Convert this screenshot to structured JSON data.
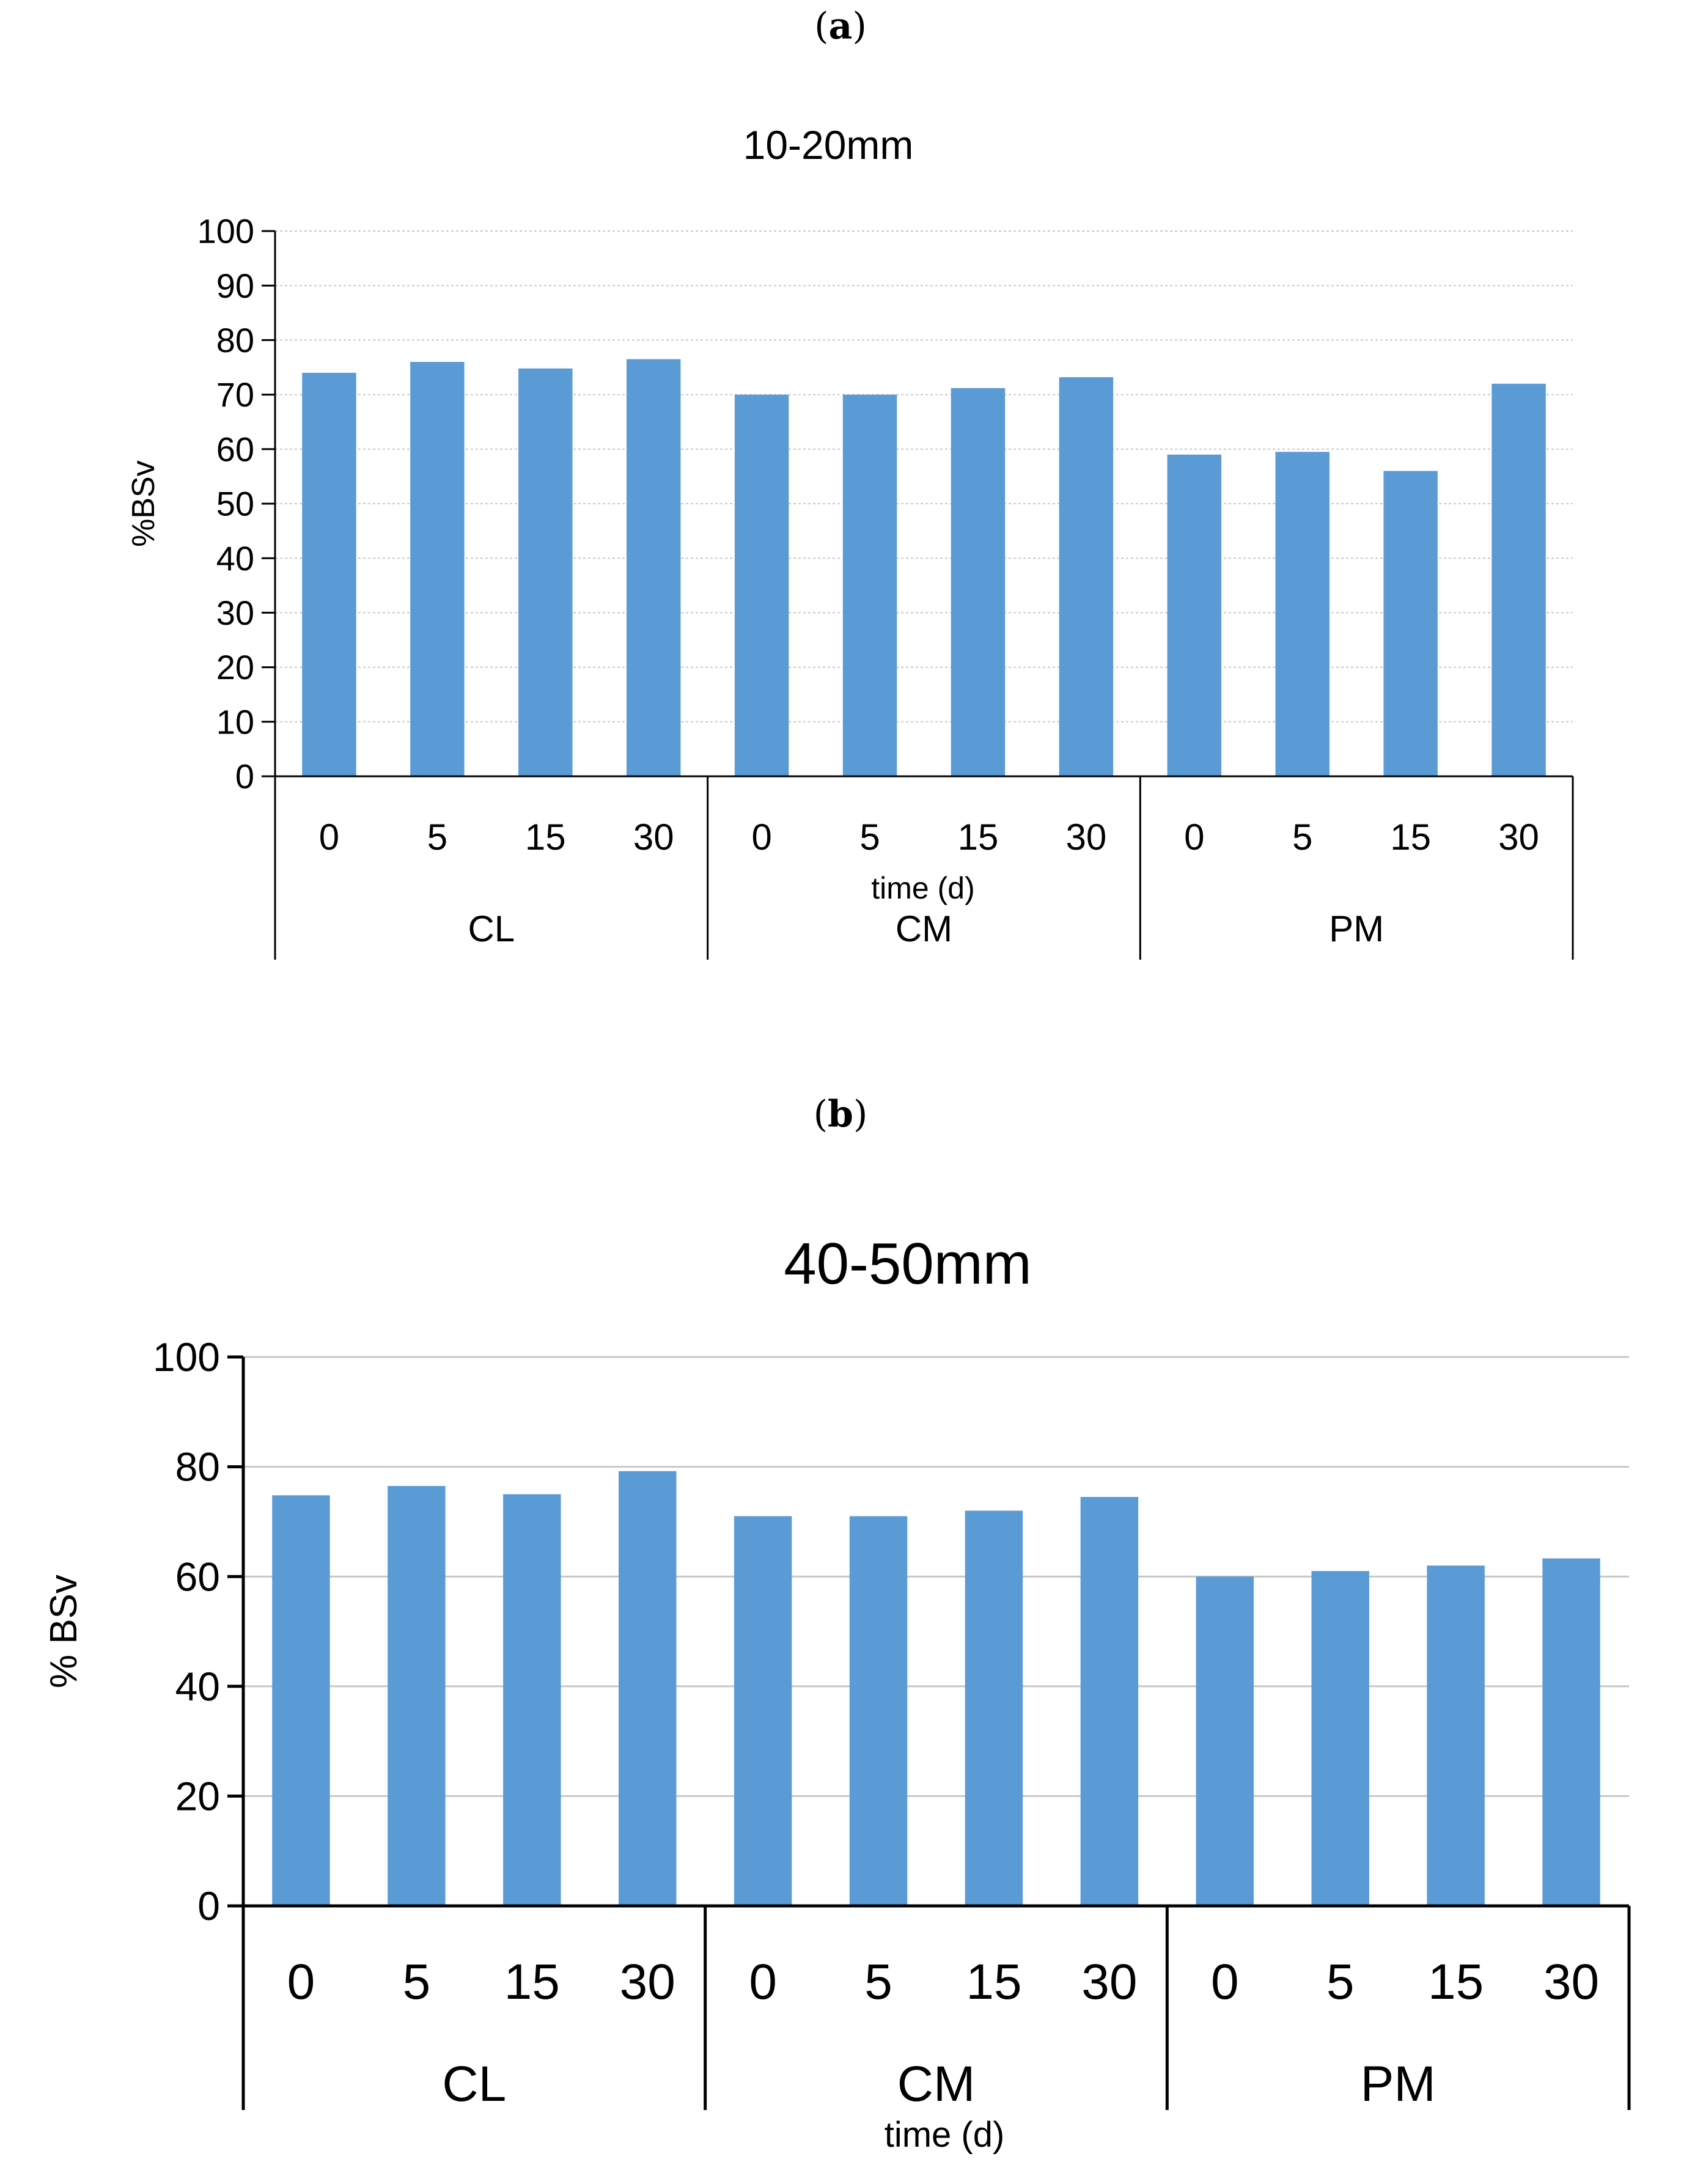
{
  "panels": [
    {
      "paren_open": "(",
      "letter": "a",
      "paren_close": ")"
    },
    {
      "paren_open": "(",
      "letter": "b",
      "paren_close": ")"
    }
  ],
  "chart_data": [
    {
      "type": "bar",
      "title": "10-20mm",
      "ylabel": "%BSv",
      "xlabel": "time (d)",
      "ylim": [
        0,
        100
      ],
      "yticks": [
        0,
        10,
        20,
        30,
        40,
        50,
        60,
        70,
        80,
        90,
        100
      ],
      "groups": [
        {
          "name": "CL",
          "categories": [
            "0",
            "5",
            "15",
            "30"
          ],
          "values": [
            74,
            76,
            74.8,
            76.5
          ]
        },
        {
          "name": "CM",
          "categories": [
            "0",
            "5",
            "15",
            "30"
          ],
          "values": [
            70,
            70,
            71.2,
            73.2
          ]
        },
        {
          "name": "PM",
          "categories": [
            "0",
            "5",
            "15",
            "30"
          ],
          "values": [
            59,
            59.5,
            56,
            72
          ]
        }
      ],
      "bar_color": "#5b9bd5",
      "grid": true
    },
    {
      "type": "bar",
      "title": "40-50mm",
      "ylabel": "% BSv",
      "xlabel": "time (d)",
      "ylim": [
        0,
        100
      ],
      "yticks": [
        0,
        20,
        40,
        60,
        80,
        100
      ],
      "groups": [
        {
          "name": "CL",
          "categories": [
            "0",
            "5",
            "15",
            "30"
          ],
          "values": [
            74.8,
            76.5,
            75,
            79.2
          ]
        },
        {
          "name": "CM",
          "categories": [
            "0",
            "5",
            "15",
            "30"
          ],
          "values": [
            71,
            71,
            72,
            74.5
          ]
        },
        {
          "name": "PM",
          "categories": [
            "0",
            "5",
            "15",
            "30"
          ],
          "values": [
            60,
            61,
            62,
            63.3
          ]
        }
      ],
      "bar_color": "#5b9bd5",
      "grid": true
    }
  ]
}
